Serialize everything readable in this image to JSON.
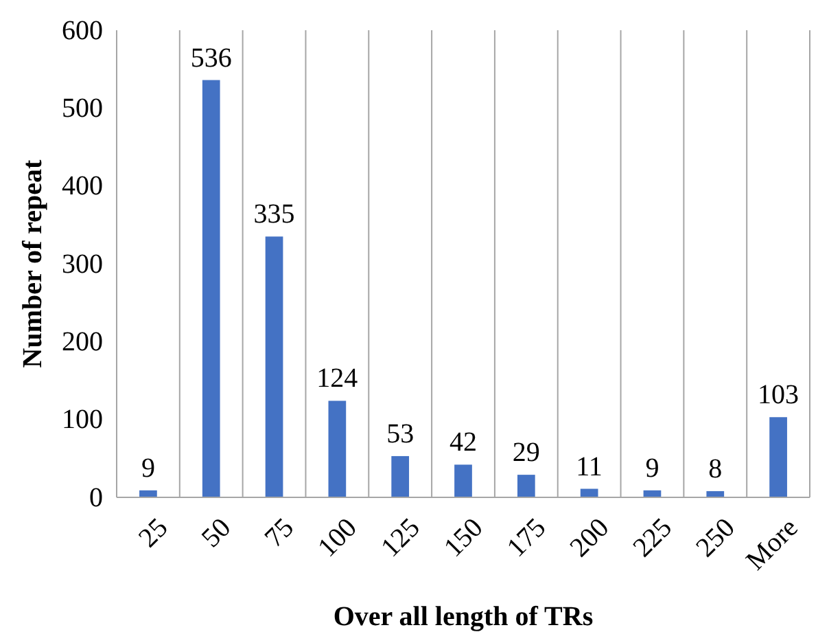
{
  "chart_data": {
    "type": "bar",
    "xlabel": "Over all length of TRs",
    "ylabel": "Number of repeat",
    "categories": [
      "25",
      "50",
      "75",
      "100",
      "125",
      "150",
      "175",
      "200",
      "225",
      "250",
      "More"
    ],
    "values": [
      9,
      536,
      335,
      124,
      53,
      42,
      29,
      11,
      9,
      8,
      103
    ],
    "color": "#4472c4",
    "ylim": [
      0,
      600
    ],
    "yticks": [
      0,
      100,
      200,
      300,
      400,
      500,
      600
    ],
    "grid": "x",
    "data_labels": true
  }
}
